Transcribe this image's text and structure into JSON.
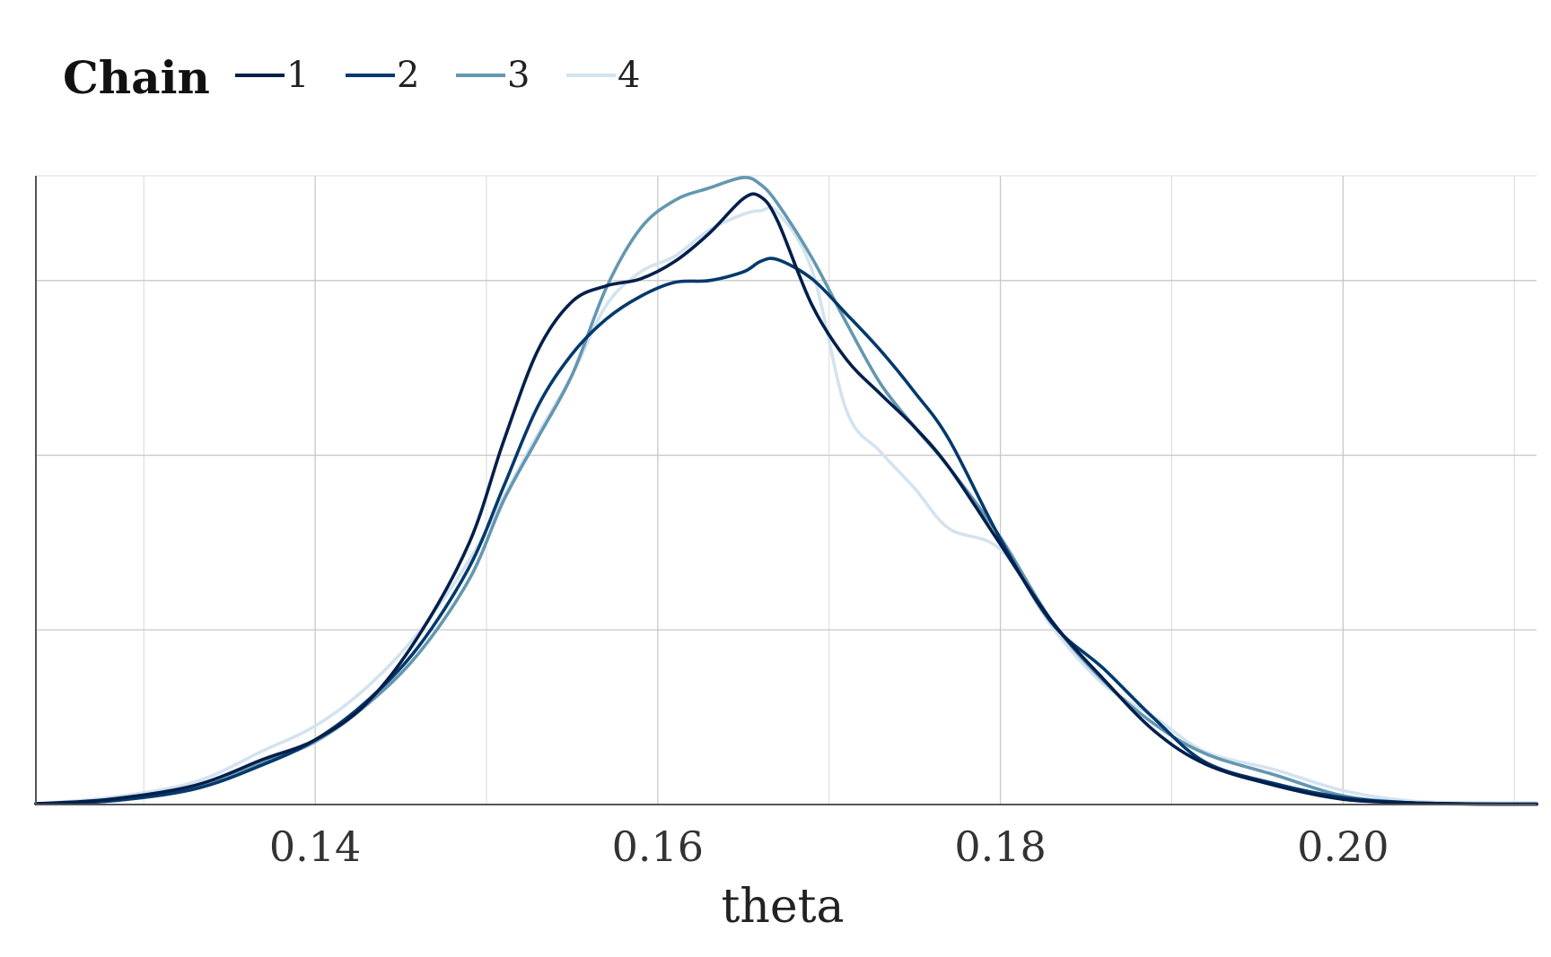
{
  "chart_data": {
    "type": "line",
    "subtype": "density",
    "title": "",
    "xlabel": "theta",
    "ylabel": "",
    "xlim": [
      0.1237,
      0.2113
    ],
    "ylim": [
      0,
      36
    ],
    "x_ticks": [
      0.14,
      0.16,
      0.18,
      0.2
    ],
    "x_tick_labels": [
      "0.14",
      "0.16",
      "0.18",
      "0.20"
    ],
    "y_gridlines": [
      0,
      10,
      20,
      30
    ],
    "y_tick_labels_shown": false,
    "grid": true,
    "legend": {
      "title": "Chain",
      "position": "top-left",
      "orientation": "horizontal"
    },
    "series": [
      {
        "name": "1",
        "color": "#011f4b",
        "x": [
          0.1237,
          0.128,
          0.133,
          0.137,
          0.14,
          0.143,
          0.146,
          0.149,
          0.151,
          0.153,
          0.155,
          0.157,
          0.159,
          0.161,
          0.163,
          0.165,
          0.166,
          0.167,
          0.169,
          0.171,
          0.173,
          0.175,
          0.177,
          0.18,
          0.183,
          0.186,
          0.189,
          0.192,
          0.196,
          0.2,
          0.204,
          0.208,
          0.2113
        ],
        "y": [
          0.05,
          0.3,
          1.1,
          2.6,
          3.7,
          5.8,
          9.6,
          15.0,
          20.8,
          26.0,
          28.8,
          29.7,
          30.1,
          31.1,
          32.7,
          34.7,
          34.8,
          33.4,
          28.6,
          25.5,
          23.5,
          21.6,
          19.3,
          14.9,
          10.5,
          7.2,
          4.2,
          2.3,
          1.1,
          0.3,
          0.1,
          0.03,
          0.02
        ]
      },
      {
        "name": "2",
        "color": "#03396c",
        "x": [
          0.1237,
          0.128,
          0.133,
          0.137,
          0.14,
          0.143,
          0.146,
          0.149,
          0.151,
          0.153,
          0.155,
          0.157,
          0.159,
          0.161,
          0.163,
          0.165,
          0.166,
          0.167,
          0.169,
          0.171,
          0.173,
          0.175,
          0.177,
          0.18,
          0.183,
          0.186,
          0.189,
          0.192,
          0.196,
          0.2,
          0.204,
          0.208,
          0.2113
        ],
        "y": [
          0.05,
          0.2,
          0.9,
          2.3,
          3.7,
          5.9,
          9.0,
          13.6,
          18.2,
          22.8,
          25.8,
          27.8,
          29.1,
          29.9,
          30.0,
          30.5,
          31.1,
          31.2,
          30.1,
          28.1,
          26.0,
          23.6,
          20.9,
          15.2,
          10.4,
          7.8,
          4.9,
          2.4,
          1.2,
          0.4,
          0.1,
          0.03,
          0.02
        ]
      },
      {
        "name": "3",
        "color": "#6497b1",
        "x": [
          0.1237,
          0.128,
          0.133,
          0.137,
          0.14,
          0.143,
          0.146,
          0.149,
          0.151,
          0.153,
          0.155,
          0.157,
          0.159,
          0.161,
          0.163,
          0.165,
          0.166,
          0.167,
          0.169,
          0.171,
          0.173,
          0.175,
          0.177,
          0.18,
          0.183,
          0.186,
          0.189,
          0.192,
          0.196,
          0.2,
          0.204,
          0.208,
          0.2113
        ],
        "y": [
          0.05,
          0.2,
          0.9,
          2.4,
          3.6,
          5.7,
          8.6,
          12.9,
          17.4,
          21.0,
          24.6,
          29.6,
          33.0,
          34.6,
          35.3,
          35.9,
          35.5,
          34.4,
          31.3,
          27.6,
          24.1,
          21.6,
          19.3,
          15.3,
          10.5,
          7.1,
          4.6,
          2.9,
          1.7,
          0.5,
          0.1,
          0.03,
          0.02
        ]
      },
      {
        "name": "4",
        "color": "#d3e3ef",
        "x": [
          0.1237,
          0.128,
          0.133,
          0.137,
          0.14,
          0.143,
          0.146,
          0.149,
          0.151,
          0.153,
          0.155,
          0.157,
          0.159,
          0.161,
          0.163,
          0.165,
          0.166,
          0.167,
          0.169,
          0.171,
          0.173,
          0.175,
          0.177,
          0.18,
          0.183,
          0.186,
          0.189,
          0.192,
          0.196,
          0.2,
          0.204,
          0.208,
          0.2113
        ],
        "y": [
          0.05,
          0.4,
          1.3,
          3.1,
          4.5,
          6.7,
          9.8,
          14.0,
          17.6,
          21.2,
          24.6,
          28.6,
          30.5,
          31.4,
          32.9,
          33.8,
          34.0,
          33.9,
          30.6,
          22.6,
          20.2,
          18.1,
          15.8,
          14.6,
          10.2,
          6.9,
          5.0,
          3.0,
          2.0,
          0.8,
          0.2,
          0.1,
          0.1
        ]
      }
    ]
  }
}
